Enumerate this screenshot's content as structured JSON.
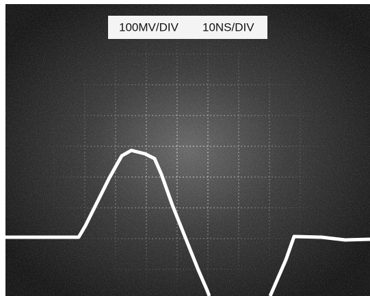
{
  "label": {
    "volts": "100MV/DIV",
    "time": "10NS/DIV"
  }
}
